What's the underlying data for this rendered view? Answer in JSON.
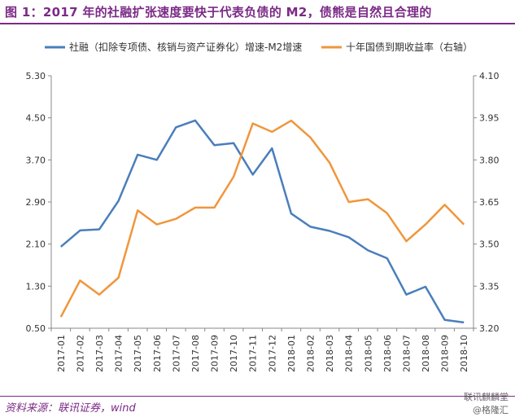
{
  "title": "图 1：2017 年的社融扩张速度要快于代表负债的 M2，债熊是自然且合理的",
  "source": "资料来源：联讯证券，wind",
  "watermark": {
    "line1": "联讯麒麟堂",
    "line2": "@格隆汇"
  },
  "colors": {
    "series1": "#4a7ebb",
    "series2": "#f0963c",
    "accent": "#7b2a86"
  },
  "chart_data": {
    "type": "line",
    "x": [
      "2017-01",
      "2017-02",
      "2017-03",
      "2017-04",
      "2017-05",
      "2017-06",
      "2017-07",
      "2017-08",
      "2017-09",
      "2017-10",
      "2017-11",
      "2017-12",
      "2018-01",
      "2018-02",
      "2018-03",
      "2018-04",
      "2018-05",
      "2018-06",
      "2018-07",
      "2018-08",
      "2018-09",
      "2018-10"
    ],
    "legend_position": "top",
    "grid": false,
    "y_left": {
      "ylim": [
        0.5,
        5.3
      ],
      "ticks": [
        "5.30",
        "4.50",
        "3.70",
        "2.90",
        "2.10",
        "1.30",
        "0.50"
      ]
    },
    "y_right": {
      "ylim": [
        3.2,
        4.1
      ],
      "ticks": [
        "4.10",
        "3.95",
        "3.80",
        "3.65",
        "3.50",
        "3.35",
        "3.20"
      ]
    },
    "series": [
      {
        "name": "社融（扣除专项债、核销与资产证券化）增速-M2增速",
        "axis": "left",
        "values": [
          2.05,
          2.36,
          2.38,
          2.92,
          3.8,
          3.7,
          4.32,
          4.45,
          3.98,
          4.02,
          3.42,
          3.92,
          2.68,
          2.43,
          2.35,
          2.23,
          1.98,
          1.83,
          1.14,
          1.29,
          0.66,
          0.61
        ]
      },
      {
        "name": "十年国债到期收益率（右轴）",
        "axis": "right",
        "values": [
          3.24,
          3.37,
          3.32,
          3.38,
          3.62,
          3.57,
          3.59,
          3.63,
          3.63,
          3.74,
          3.93,
          3.9,
          3.94,
          3.88,
          3.79,
          3.65,
          3.66,
          3.61,
          3.51,
          3.57,
          3.64,
          3.57
        ]
      }
    ]
  }
}
